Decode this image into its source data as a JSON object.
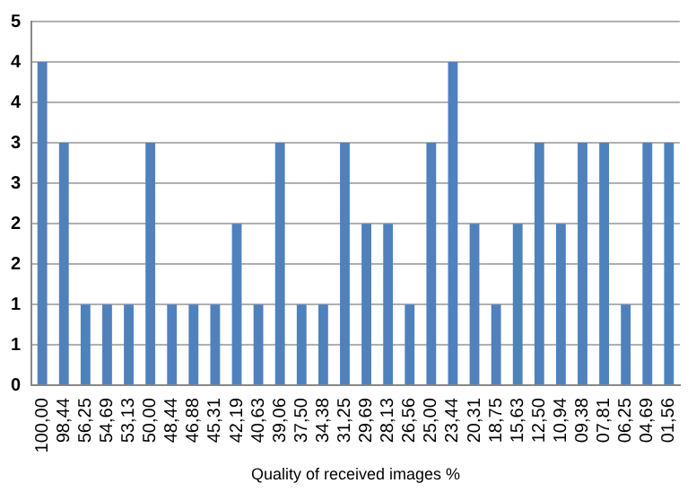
{
  "chart_data": {
    "type": "bar",
    "xlabel": "Quality of received images %",
    "categories": [
      "100,00",
      "98,44",
      "56,25",
      "54,69",
      "53,13",
      "50,00",
      "48,44",
      "46,88",
      "45,31",
      "42,19",
      "40,63",
      "39,06",
      "37,50",
      "34,38",
      "31,25",
      "29,69",
      "28,13",
      "26,56",
      "25,00",
      "23,44",
      "20,31",
      "18,75",
      "15,63",
      "12,50",
      "10,94",
      "09,38",
      "07,81",
      "06,25",
      "04,69",
      "01,56"
    ],
    "values": [
      4,
      3,
      1,
      1,
      1,
      3,
      1,
      1,
      1,
      2,
      1,
      3,
      1,
      1,
      3,
      2,
      2,
      1,
      3,
      4,
      2,
      1,
      2,
      3,
      2,
      3,
      3,
      1,
      3,
      3
    ],
    "color": "#4f81bd",
    "ylim": [
      0,
      4.5
    ],
    "yticks": [
      0,
      {
        "value": 0.5,
        "label": "1"
      },
      1,
      {
        "value": 1.5,
        "label": "2"
      },
      2,
      {
        "value": 2.5,
        "label": "3"
      },
      3,
      {
        "value": 3.5,
        "label": "4"
      },
      4,
      {
        "value": 4.5,
        "label": "5"
      }
    ],
    "grid": "y",
    "legend": false
  }
}
